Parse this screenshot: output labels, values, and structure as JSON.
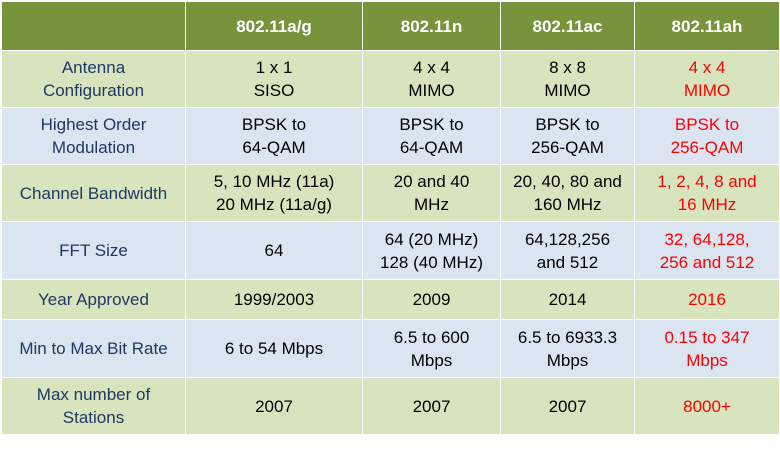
{
  "table": {
    "headers": [
      "",
      "802.11a/g",
      "802.11n",
      "802.11ac",
      "802.11ah"
    ],
    "colors": {
      "header_bg": "#77933c",
      "header_text": "#ffffff",
      "row_green": "#d7e4bd",
      "row_blue": "#dbe5f1",
      "label_text": "#1f3864",
      "highlight_text": "#ff0000"
    },
    "rows": [
      {
        "label": [
          "Antenna",
          "Configuration"
        ],
        "cells": [
          [
            "1 x 1",
            "SISO"
          ],
          [
            "4 x 4",
            "MIMO"
          ],
          [
            "8 x 8",
            "MIMO"
          ],
          [
            "4 x 4",
            "MIMO"
          ]
        ]
      },
      {
        "label": [
          "Highest Order",
          "Modulation"
        ],
        "cells": [
          [
            "BPSK to",
            "64-QAM"
          ],
          [
            "BPSK to",
            "64-QAM"
          ],
          [
            "BPSK to",
            "256-QAM"
          ],
          [
            "BPSK to",
            "256-QAM"
          ]
        ]
      },
      {
        "label": [
          "Channel Bandwidth"
        ],
        "cells": [
          [
            "5, 10 MHz (11a)",
            "20 MHz (11a/g)"
          ],
          [
            "20 and 40",
            "MHz"
          ],
          [
            "20, 40, 80 and",
            "160 MHz"
          ],
          [
            "1, 2, 4, 8 and",
            "16 MHz"
          ]
        ]
      },
      {
        "label": [
          "FFT Size"
        ],
        "cells": [
          [
            "64"
          ],
          [
            "64 (20 MHz)",
            "128 (40 MHz)"
          ],
          [
            "64,128,256",
            "and 512"
          ],
          [
            "32, 64,128,",
            "256 and 512"
          ]
        ]
      },
      {
        "label": [
          "Year Approved"
        ],
        "cells": [
          [
            "1999/2003"
          ],
          [
            "2009"
          ],
          [
            "2014"
          ],
          [
            "2016"
          ]
        ]
      },
      {
        "label": [
          "Min to Max Bit Rate"
        ],
        "cells": [
          [
            "6 to 54 Mbps"
          ],
          [
            "6.5 to 600",
            "Mbps"
          ],
          [
            "6.5 to 6933.3",
            "Mbps"
          ],
          [
            "0.15 to 347",
            "Mbps"
          ]
        ]
      },
      {
        "label": [
          "Max number of",
          "Stations"
        ],
        "cells": [
          [
            "2007"
          ],
          [
            "2007"
          ],
          [
            "2007"
          ],
          [
            "8000+"
          ]
        ]
      }
    ]
  }
}
